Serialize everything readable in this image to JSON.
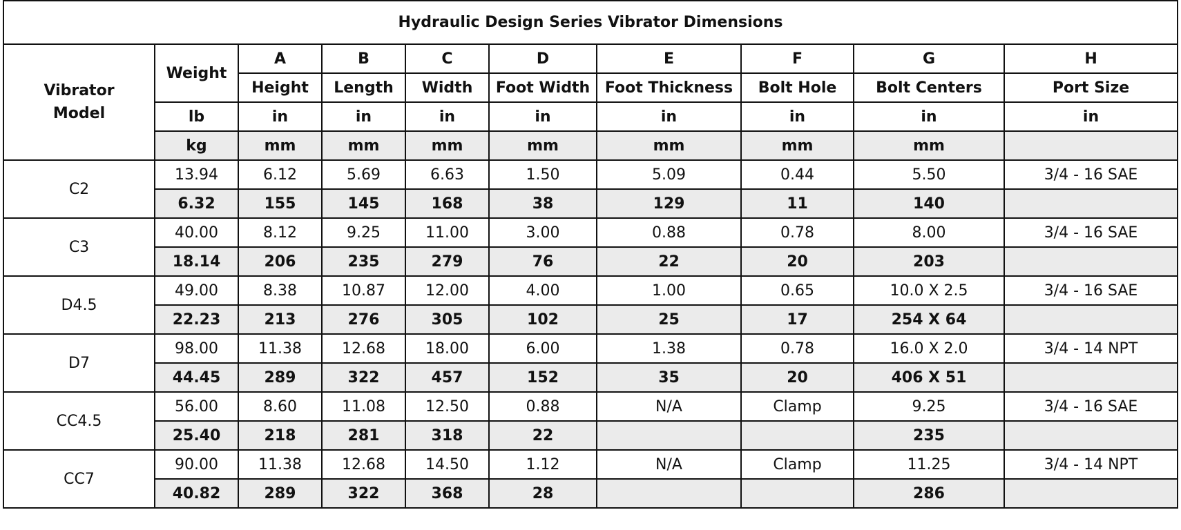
{
  "title": "Hydraulic Design Series Vibrator Dimensions",
  "header": {
    "model_label_line1": "Vibrator",
    "model_label_line2": "Model",
    "weight_label": "Weight",
    "letters": [
      "A",
      "B",
      "C",
      "D",
      "E",
      "F",
      "G",
      "H"
    ],
    "dimension_names": [
      "Height",
      "Length",
      "Width",
      "Foot Width",
      "Foot Thickness",
      "Bolt Hole",
      "Bolt Centers",
      "Port Size"
    ],
    "imperial_units": [
      "lb",
      "in",
      "in",
      "in",
      "in",
      "in",
      "in",
      "in",
      "in"
    ],
    "metric_units": [
      "kg",
      "mm",
      "mm",
      "mm",
      "mm",
      "mm",
      "mm",
      "mm",
      ""
    ]
  },
  "rows": [
    {
      "model": "C2",
      "imperial": [
        "13.94",
        "6.12",
        "5.69",
        "6.63",
        "1.50",
        "5.09",
        "0.44",
        "5.50",
        "3/4 - 16 SAE"
      ],
      "metric": [
        "6.32",
        "155",
        "145",
        "168",
        "38",
        "129",
        "11",
        "140",
        ""
      ]
    },
    {
      "model": "C3",
      "imperial": [
        "40.00",
        "8.12",
        "9.25",
        "11.00",
        "3.00",
        "0.88",
        "0.78",
        "8.00",
        "3/4 - 16 SAE"
      ],
      "metric": [
        "18.14",
        "206",
        "235",
        "279",
        "76",
        "22",
        "20",
        "203",
        ""
      ]
    },
    {
      "model": "D4.5",
      "imperial": [
        "49.00",
        "8.38",
        "10.87",
        "12.00",
        "4.00",
        "1.00",
        "0.65",
        "10.0 X 2.5",
        "3/4 - 16 SAE"
      ],
      "metric": [
        "22.23",
        "213",
        "276",
        "305",
        "102",
        "25",
        "17",
        "254 X 64",
        ""
      ]
    },
    {
      "model": "D7",
      "imperial": [
        "98.00",
        "11.38",
        "12.68",
        "18.00",
        "6.00",
        "1.38",
        "0.78",
        "16.0 X 2.0",
        "3/4 - 14 NPT"
      ],
      "metric": [
        "44.45",
        "289",
        "322",
        "457",
        "152",
        "35",
        "20",
        "406 X 51",
        ""
      ]
    },
    {
      "model": "CC4.5",
      "imperial": [
        "56.00",
        "8.60",
        "11.08",
        "12.50",
        "0.88",
        "N/A",
        "Clamp",
        "9.25",
        "3/4 - 16 SAE"
      ],
      "metric": [
        "25.40",
        "218",
        "281",
        "318",
        "22",
        "",
        "",
        "235",
        ""
      ]
    },
    {
      "model": "CC7",
      "imperial": [
        "90.00",
        "11.38",
        "12.68",
        "14.50",
        "1.12",
        "N/A",
        "Clamp",
        "11.25",
        "3/4  - 14 NPT"
      ],
      "metric": [
        "40.82",
        "289",
        "322",
        "368",
        "28",
        "",
        "",
        "286",
        ""
      ]
    }
  ],
  "colors": {
    "border": "#111111",
    "metric_row_bg": "#ebebeb",
    "background": "#ffffff"
  }
}
